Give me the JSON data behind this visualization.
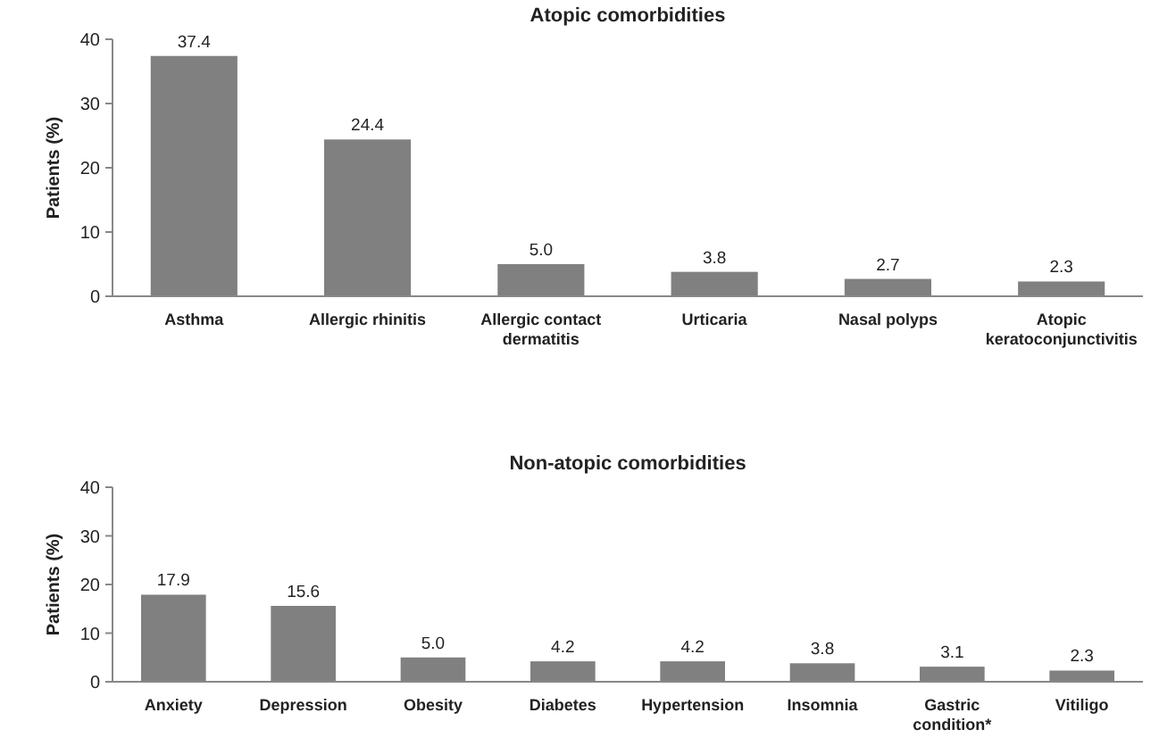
{
  "chart_data": [
    {
      "type": "bar",
      "title": "Atopic comorbidities",
      "ylabel": "Patients (%)",
      "categories": [
        "Asthma",
        "Allergic rhinitis",
        "Allergic contact dermatitis",
        "Urticaria",
        "Nasal polyps",
        "Atopic keratoconjunctivitis"
      ],
      "values": [
        37.4,
        24.4,
        5.0,
        3.8,
        2.7,
        2.3
      ],
      "value_labels": [
        "37.4",
        "24.4",
        "5.0",
        "3.8",
        "2.7",
        "2.3"
      ],
      "color": "#808080",
      "ylim": [
        0,
        40
      ],
      "yticks": [
        0,
        10,
        20,
        30,
        40
      ],
      "grid": false
    },
    {
      "type": "bar",
      "title": "Non-atopic comorbidities",
      "ylabel": "Patients (%)",
      "categories": [
        "Anxiety",
        "Depression",
        "Obesity",
        "Diabetes",
        "Hypertension",
        "Insomnia",
        "Gastric condition*",
        "Vitiligo"
      ],
      "values": [
        17.9,
        15.6,
        5.0,
        4.2,
        4.2,
        3.8,
        3.1,
        2.3
      ],
      "value_labels": [
        "17.9",
        "15.6",
        "5.0",
        "4.2",
        "4.2",
        "3.8",
        "3.1",
        "2.3"
      ],
      "color": "#808080",
      "ylim": [
        0,
        40
      ],
      "yticks": [
        0,
        10,
        20,
        30,
        40
      ],
      "grid": false
    }
  ]
}
